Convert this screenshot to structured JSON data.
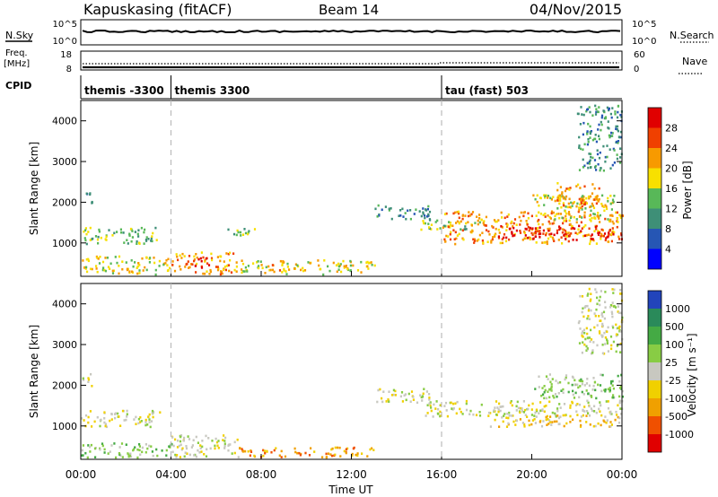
{
  "header": {
    "station": "Kapuskasing (fitACF)",
    "beam": "Beam 14",
    "date": "04/Nov/2015"
  },
  "panels": {
    "sky_label": "N.Sky",
    "sky_ticks": [
      "10^5",
      "10^0"
    ],
    "search_label": "N.Search",
    "freq_label": "Freq.",
    "freq_unit": "[MHz]",
    "freq_ticks": [
      "18",
      "8"
    ],
    "nave_ticks": [
      "60",
      "0"
    ],
    "nave_label": "Nave",
    "cpid_label": "CPID",
    "cpid_segments": [
      {
        "label": "themis -3300",
        "start_h": 0,
        "end_h": 4
      },
      {
        "label": "themis 3300",
        "start_h": 4,
        "end_h": 16
      },
      {
        "label": "tau (fast) 503",
        "start_h": 16,
        "end_h": 24
      }
    ]
  },
  "chart_data": [
    {
      "type": "heatmap",
      "title": "",
      "quantity": "Power",
      "ylabel": "Slant Range [km]",
      "xlabel": "Time UT",
      "ylim": [
        180,
        4500
      ],
      "yticks": [
        "1000",
        "2000",
        "3000",
        "4000"
      ],
      "colorbar": {
        "label": "Power [dB]",
        "ticks": [
          "4",
          "8",
          "12",
          "16",
          "20",
          "24",
          "28"
        ],
        "colors": [
          "#0000ff",
          "#2656b4",
          "#3e8f77",
          "#58b858",
          "#f7e000",
          "#f79a00",
          "#f04000",
          "#e00000"
        ]
      },
      "regions": [
        {
          "t": [
            0,
            3.5
          ],
          "r": [
            1000,
            1400
          ],
          "level": 3
        },
        {
          "t": [
            0,
            0.5
          ],
          "r": [
            2000,
            2300
          ],
          "level": 2
        },
        {
          "t": [
            0,
            4
          ],
          "r": [
            250,
            700
          ],
          "level": 4
        },
        {
          "t": [
            4,
            7
          ],
          "r": [
            250,
            800
          ],
          "level": 5
        },
        {
          "t": [
            5,
            5.8
          ],
          "r": [
            400,
            650
          ],
          "level": 7
        },
        {
          "t": [
            6.5,
            8
          ],
          "r": [
            1200,
            1400
          ],
          "level": 3
        },
        {
          "t": [
            7,
            12
          ],
          "r": [
            250,
            600
          ],
          "level": 4
        },
        {
          "t": [
            8,
            9
          ],
          "r": [
            350,
            500
          ],
          "level": 5
        },
        {
          "t": [
            12,
            13
          ],
          "r": [
            300,
            600
          ],
          "level": 4
        },
        {
          "t": [
            13,
            15.5
          ],
          "r": [
            1600,
            1950
          ],
          "level": 2
        },
        {
          "t": [
            15,
            18
          ],
          "r": [
            1350,
            1600
          ],
          "level": 3
        },
        {
          "t": [
            16,
            24
          ],
          "r": [
            1000,
            1800
          ],
          "level": 5
        },
        {
          "t": [
            18.5,
            24
          ],
          "r": [
            1100,
            1450
          ],
          "level": 7
        },
        {
          "t": [
            20,
            24
          ],
          "r": [
            1600,
            2200
          ],
          "level": 4
        },
        {
          "t": [
            21,
            23
          ],
          "r": [
            1900,
            2500
          ],
          "level": 5
        },
        {
          "t": [
            22,
            24
          ],
          "r": [
            2800,
            4400
          ],
          "level": 2
        }
      ]
    },
    {
      "type": "heatmap",
      "title": "",
      "quantity": "Velocity",
      "ylabel": "Slant Range [km]",
      "xlabel": "Time UT",
      "ylim": [
        180,
        4500
      ],
      "yticks": [
        "1000",
        "2000",
        "3000",
        "4000"
      ],
      "colorbar": {
        "label": "Velocity [m s⁻¹]",
        "ticks": [
          "1000",
          "500",
          "100",
          "25",
          "-25",
          "-100",
          "-500",
          "-1000"
        ],
        "colors": [
          "#2244bb",
          "#2a8a5a",
          "#44aa44",
          "#88cc44",
          "#c8c8c0",
          "#f0d000",
          "#f0a000",
          "#f05000",
          "#e00000"
        ]
      },
      "regions": [
        {
          "t": [
            0,
            3.5
          ],
          "r": [
            1000,
            1400
          ],
          "level": 4
        },
        {
          "t": [
            0,
            0.5
          ],
          "r": [
            2000,
            2300
          ],
          "level": 4
        },
        {
          "t": [
            0,
            4
          ],
          "r": [
            250,
            600
          ],
          "level": 3
        },
        {
          "t": [
            4,
            7
          ],
          "r": [
            250,
            800
          ],
          "level": 4
        },
        {
          "t": [
            7,
            12
          ],
          "r": [
            250,
            500
          ],
          "level": 6
        },
        {
          "t": [
            12,
            13
          ],
          "r": [
            250,
            500
          ],
          "level": 6
        },
        {
          "t": [
            13,
            15.5
          ],
          "r": [
            1600,
            1950
          ],
          "level": 4
        },
        {
          "t": [
            15,
            24
          ],
          "r": [
            1250,
            1650
          ],
          "level": 4
        },
        {
          "t": [
            18,
            24
          ],
          "r": [
            1000,
            1300
          ],
          "level": 5
        },
        {
          "t": [
            20,
            24
          ],
          "r": [
            1700,
            2300
          ],
          "level": 3
        },
        {
          "t": [
            22,
            24
          ],
          "r": [
            2800,
            4400
          ],
          "level": 4
        }
      ]
    }
  ],
  "time_axis": {
    "ticks": [
      "00:00",
      "04:00",
      "08:00",
      "12:00",
      "16:00",
      "20:00",
      "00:00"
    ],
    "label": "Time UT"
  }
}
